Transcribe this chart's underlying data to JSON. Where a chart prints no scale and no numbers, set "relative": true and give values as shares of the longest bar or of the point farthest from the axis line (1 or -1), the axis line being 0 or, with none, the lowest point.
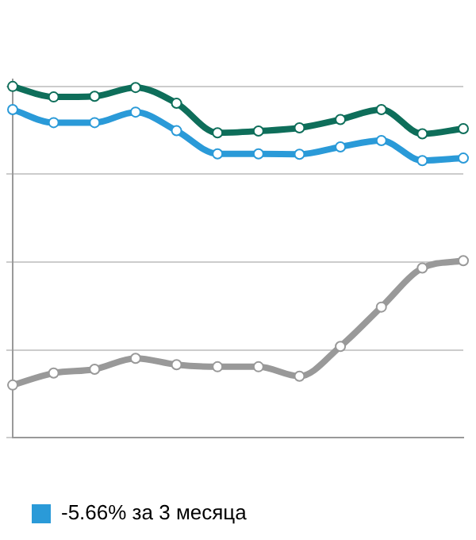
{
  "chart_data": {
    "type": "line",
    "relative": true,
    "categories": [
      null,
      null,
      null,
      null,
      null,
      null,
      null,
      null,
      null,
      null,
      null,
      null
    ],
    "series": [
      {
        "color": "#0e6e5a",
        "values": [
          1,
          0.97,
          0.972,
          0.997,
          0.952,
          0.868,
          0.873,
          0.882,
          0.906,
          0.934,
          0.865,
          0.88
        ]
      },
      {
        "name": "-5.66% за 3 месяца",
        "color": "#2a9ad8",
        "values": [
          0.934,
          0.897,
          0.897,
          0.927,
          0.874,
          0.808,
          0.808,
          0.807,
          0.828,
          0.846,
          0.789,
          0.796
        ]
      },
      {
        "color": "#999999",
        "values": [
          0.15,
          0.184,
          0.195,
          0.226,
          0.208,
          0.202,
          0.202,
          0.175,
          0.26,
          0.372,
          0.483,
          0.504
        ]
      }
    ],
    "grid": "y",
    "legend": "bottom",
    "marker": "circle",
    "line_style": "solid"
  }
}
